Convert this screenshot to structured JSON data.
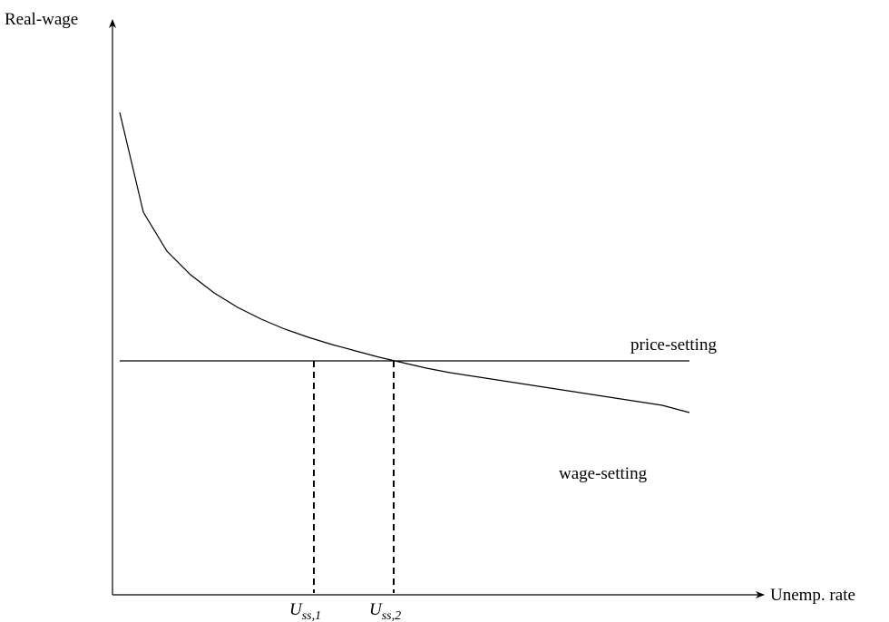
{
  "axes": {
    "y_label": "Real-wage",
    "x_label": "Unemp. rate"
  },
  "curves": {
    "price_setting_label": "price-setting",
    "wage_setting_label": "wage-setting"
  },
  "markers": [
    {
      "main": "U",
      "sub": "ss,1"
    },
    {
      "main": "U",
      "sub": "ss,2"
    }
  ],
  "colors": {
    "ink": "#000000",
    "background": "#ffffff"
  }
}
